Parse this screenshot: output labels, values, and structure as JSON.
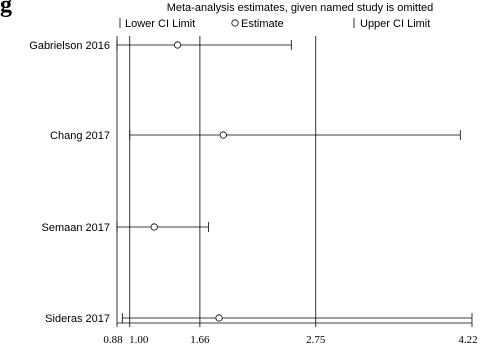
{
  "panel_label": "g",
  "chart_data": {
    "type": "scatter",
    "title": "Meta-analysis estimates, given named study is omitted",
    "legend": {
      "placement": "top",
      "entries": [
        {
          "symbol": "|",
          "label": "Lower CI Limit"
        },
        {
          "symbol": "o",
          "label": "Estimate"
        },
        {
          "symbol": "|",
          "label": "Upper CI Limit"
        }
      ]
    },
    "xlim": [
      0.88,
      4.22
    ],
    "x_ticks": [
      {
        "value": 0.88,
        "label": "0.88"
      },
      {
        "value": 1.0,
        "label": "1.00"
      },
      {
        "value": 1.66,
        "label": "1.66"
      },
      {
        "value": 2.75,
        "label": "2.75"
      },
      {
        "value": 4.22,
        "label": "4.22"
      }
    ],
    "reference_lines": [
      1.0,
      1.66,
      2.75
    ],
    "studies": [
      {
        "name": "Gabrielson 2016",
        "lower": 0.88,
        "estimate": 1.45,
        "upper": 2.52
      },
      {
        "name": "Chang 2017",
        "lower": 1.0,
        "estimate": 1.88,
        "upper": 4.11
      },
      {
        "name": "Semaan 2017",
        "lower": 0.88,
        "estimate": 1.23,
        "upper": 1.74
      },
      {
        "name": "Sideras 2017",
        "lower": 0.93,
        "estimate": 1.84,
        "upper": 4.22
      }
    ],
    "colors": {
      "line": "#000000",
      "background": "#ffffff"
    }
  }
}
